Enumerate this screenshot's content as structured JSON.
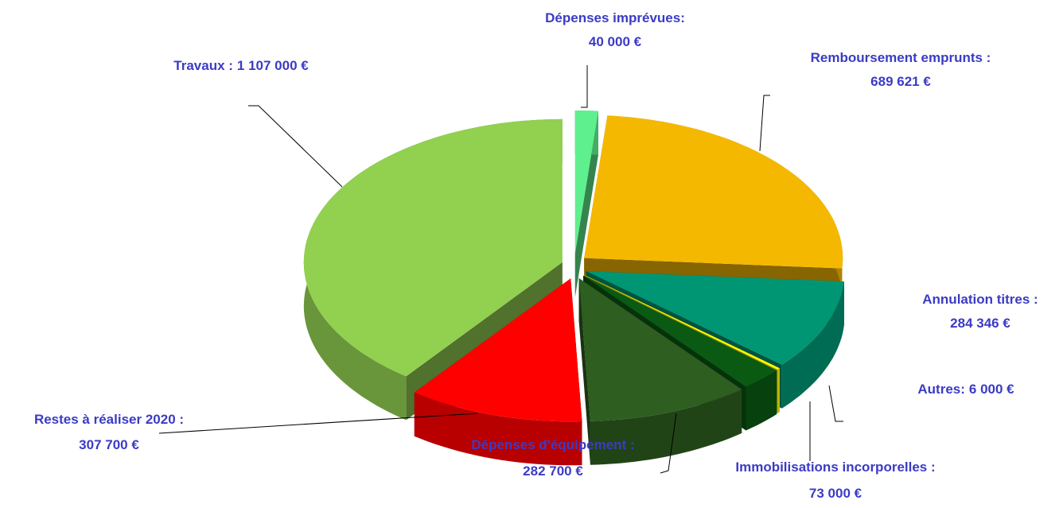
{
  "chart_data": {
    "type": "pie",
    "categories": [
      "Dépenses imprévues:",
      "Remboursement emprunts :",
      "Annulation titres :",
      "Autres:",
      "Immobilisations incorporelles :",
      "Dépenses d'équipement :",
      "Restes à réaliser 2020 :",
      "Travaux :"
    ],
    "values": [
      40000,
      689621,
      284346,
      6000,
      73000,
      282700,
      307700,
      1107000
    ],
    "value_labels": [
      "40 000 €",
      "689 621 €",
      "284 346 €",
      "6 000 €",
      "73 000 €",
      "282 700 €",
      "307 700 €",
      "1 107 000 €"
    ],
    "colors": [
      "#5ef08e",
      "#f5b800",
      "#009673",
      "#ffff00",
      "#0a5a14",
      "#2e5e20",
      "#ff0000",
      "#92d050"
    ]
  }
}
